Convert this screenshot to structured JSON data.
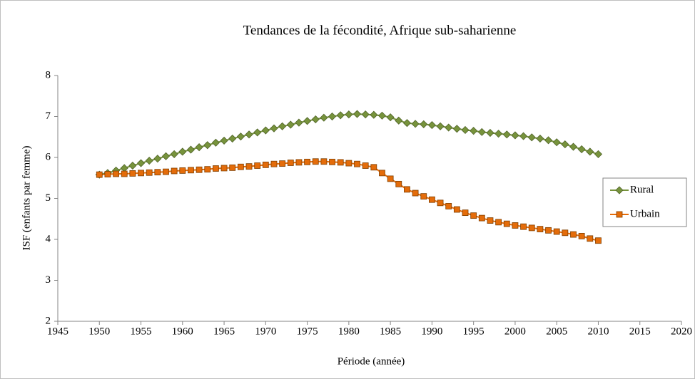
{
  "chart_data": {
    "type": "line",
    "title": "Tendances de la fécondité, Afrique sub-saharienne",
    "xlabel": "Période (année)",
    "ylabel": "ISF (enfants par femme)",
    "x": [
      1950,
      1951,
      1952,
      1953,
      1954,
      1955,
      1956,
      1957,
      1958,
      1959,
      1960,
      1961,
      1962,
      1963,
      1964,
      1965,
      1966,
      1967,
      1968,
      1969,
      1970,
      1971,
      1972,
      1973,
      1974,
      1975,
      1976,
      1977,
      1978,
      1979,
      1980,
      1981,
      1982,
      1983,
      1984,
      1985,
      1986,
      1987,
      1988,
      1989,
      1990,
      1991,
      1992,
      1993,
      1994,
      1995,
      1996,
      1997,
      1998,
      1999,
      2000,
      2001,
      2002,
      2003,
      2004,
      2005,
      2006,
      2007,
      2008,
      2009,
      2010
    ],
    "series": [
      {
        "name": "Rural",
        "color": "#77933c",
        "marker": "diamond",
        "values": [
          5.58,
          5.62,
          5.68,
          5.74,
          5.8,
          5.86,
          5.92,
          5.97,
          6.03,
          6.08,
          6.14,
          6.19,
          6.25,
          6.3,
          6.36,
          6.41,
          6.46,
          6.51,
          6.56,
          6.61,
          6.66,
          6.71,
          6.76,
          6.8,
          6.85,
          6.89,
          6.93,
          6.97,
          7.0,
          7.03,
          7.05,
          7.06,
          7.05,
          7.04,
          7.02,
          6.98,
          6.9,
          6.84,
          6.82,
          6.81,
          6.79,
          6.76,
          6.73,
          6.7,
          6.67,
          6.65,
          6.62,
          6.6,
          6.58,
          6.56,
          6.54,
          6.52,
          6.49,
          6.46,
          6.42,
          6.37,
          6.32,
          6.26,
          6.2,
          6.14,
          6.08
        ]
      },
      {
        "name": "Urbain",
        "color": "#e46c0a",
        "marker": "square",
        "values": [
          5.58,
          5.59,
          5.6,
          5.6,
          5.61,
          5.62,
          5.63,
          5.64,
          5.65,
          5.67,
          5.68,
          5.69,
          5.7,
          5.71,
          5.73,
          5.74,
          5.75,
          5.77,
          5.78,
          5.8,
          5.82,
          5.84,
          5.85,
          5.87,
          5.88,
          5.89,
          5.9,
          5.9,
          5.89,
          5.88,
          5.86,
          5.84,
          5.8,
          5.76,
          5.62,
          5.48,
          5.35,
          5.22,
          5.13,
          5.05,
          4.97,
          4.89,
          4.81,
          4.73,
          4.65,
          4.58,
          4.52,
          4.46,
          4.42,
          4.38,
          4.34,
          4.31,
          4.28,
          4.25,
          4.22,
          4.19,
          4.16,
          4.12,
          4.08,
          4.02,
          3.97
        ]
      }
    ],
    "xlim": [
      1945,
      2020
    ],
    "xticks": [
      1945,
      1950,
      1955,
      1960,
      1965,
      1970,
      1975,
      1980,
      1985,
      1990,
      1995,
      2000,
      2005,
      2010,
      2015,
      2020
    ],
    "ylim": [
      2,
      8
    ],
    "yticks": [
      2,
      3,
      4,
      5,
      6,
      7,
      8
    ],
    "legend": "right"
  }
}
